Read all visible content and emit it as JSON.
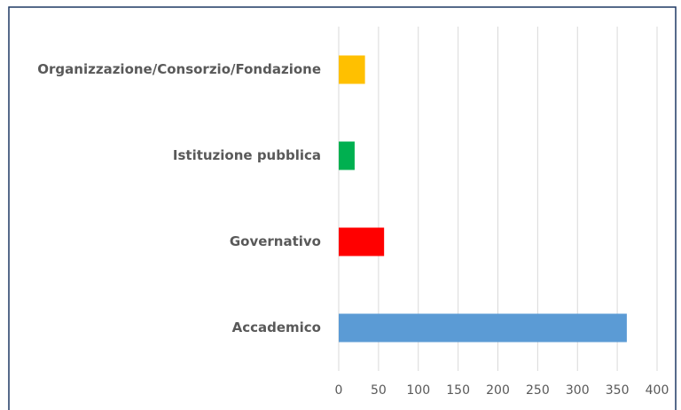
{
  "chart_data": {
    "type": "bar",
    "orientation": "horizontal",
    "categories": [
      "Organizzazione/Consorzio/Fondazione",
      "Istituzione pubblica",
      "Governativo",
      "Accademico"
    ],
    "values": [
      33,
      20,
      57,
      362
    ],
    "colors": [
      "#ffc000",
      "#00b050",
      "#ff0000",
      "#5b9bd5"
    ],
    "xlim": [
      0,
      400
    ],
    "xticks": [
      0,
      50,
      100,
      150,
      200,
      250,
      300,
      350,
      400
    ],
    "grid": true
  }
}
